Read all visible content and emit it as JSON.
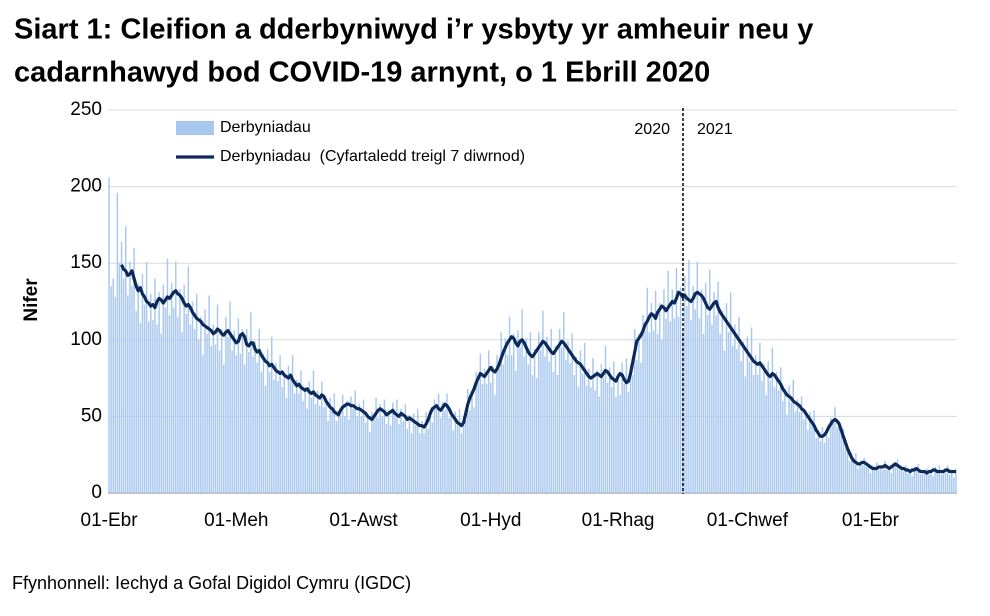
{
  "chart_data": {
    "type": "bar",
    "title": [
      "Siart 1: Cleifion a dderbyniwyd i’r ysbyty yr amheuir neu y",
      "cadarnhawyd bod COVID-19 arnynt, o 1 Ebrill 2020"
    ],
    "ylabel": "Nifer",
    "annotations": [
      "2020",
      "2021"
    ],
    "source": "Ffynhonnell: Iechyd a Gofal Digidol Cymru (IGDC)",
    "ylim": [
      0,
      250
    ],
    "yticks": [
      0,
      50,
      100,
      150,
      200,
      250
    ],
    "grid": true,
    "legend": "top-left",
    "categories": [
      "01-Ebr",
      null,
      null,
      null,
      null,
      null,
      null,
      null,
      null,
      null,
      null,
      null,
      null,
      null,
      null,
      null,
      null,
      null,
      null,
      null,
      null,
      null,
      null,
      null,
      null,
      null,
      null,
      null,
      null,
      null,
      null,
      null,
      null,
      null,
      null,
      null,
      null,
      null,
      null,
      null,
      null,
      null,
      null,
      null,
      null,
      null,
      null,
      null,
      null,
      null,
      null,
      null,
      null,
      null,
      null,
      null,
      null,
      null,
      null,
      null,
      null,
      "01-Meh",
      null,
      null,
      null,
      null,
      null,
      null,
      null,
      null,
      null,
      null,
      null,
      null,
      null,
      null,
      null,
      null,
      null,
      null,
      null,
      null,
      null,
      null,
      null,
      null,
      null,
      null,
      null,
      null,
      null,
      null,
      null,
      null,
      null,
      null,
      null,
      null,
      null,
      null,
      null,
      null,
      null,
      null,
      null,
      null,
      null,
      null,
      null,
      null,
      null,
      null,
      null,
      null,
      null,
      null,
      null,
      null,
      null,
      null,
      null,
      null,
      "01-Awst",
      null,
      null,
      null,
      null,
      null,
      null,
      null,
      null,
      null,
      null,
      null,
      null,
      null,
      null,
      null,
      null,
      null,
      null,
      null,
      null,
      null,
      null,
      null,
      null,
      null,
      null,
      null,
      null,
      null,
      null,
      null,
      null,
      null,
      null,
      null,
      null,
      null,
      null,
      null,
      null,
      null,
      null,
      null,
      null,
      null,
      null,
      null,
      null,
      null,
      null,
      null,
      null,
      null,
      null,
      null,
      null,
      null,
      null,
      null,
      null,
      "01-Hyd",
      null,
      null,
      null,
      null,
      null,
      null,
      null,
      null,
      null,
      null,
      null,
      null,
      null,
      null,
      null,
      null,
      null,
      null,
      null,
      null,
      null,
      null,
      null,
      null,
      null,
      null,
      null,
      null,
      null,
      null,
      null,
      null,
      null,
      null,
      null,
      null,
      null,
      null,
      null,
      null,
      null,
      null,
      null,
      null,
      null,
      null,
      null,
      null,
      null,
      null,
      null,
      null,
      null,
      null,
      null,
      null,
      null,
      null,
      null,
      null,
      "01-Rhag",
      null,
      null,
      null,
      null,
      null,
      null,
      null,
      null,
      null,
      null,
      null,
      null,
      null,
      null,
      null,
      null,
      null,
      null,
      null,
      null,
      null,
      null,
      null,
      null,
      null,
      null,
      null,
      null,
      null,
      null,
      null,
      null,
      null,
      null,
      null,
      null,
      null,
      null,
      null,
      null,
      null,
      null,
      null,
      null,
      null,
      null,
      null,
      null,
      null,
      null,
      null,
      null,
      null,
      null,
      null,
      null,
      null,
      null,
      null,
      null,
      null,
      "01-Chwef",
      null,
      null,
      null,
      null,
      null,
      null,
      null,
      null,
      null,
      null,
      null,
      null,
      null,
      null,
      null,
      null,
      null,
      null,
      null,
      null,
      null,
      null,
      null,
      null,
      null,
      null,
      null,
      null,
      null,
      null,
      null,
      null,
      null,
      null,
      null,
      null,
      null,
      null,
      null,
      null,
      null,
      null,
      null,
      null,
      null,
      null,
      null,
      null,
      null,
      null,
      null,
      null,
      null,
      null,
      null,
      null,
      null,
      null,
      "01-Ebr",
      null,
      null,
      null,
      null,
      null,
      null,
      null,
      null,
      null,
      null,
      null,
      null,
      null,
      null,
      null,
      null,
      null,
      null,
      null,
      null,
      null,
      null,
      null,
      null,
      null,
      null,
      null,
      null,
      null,
      null,
      null,
      null,
      null,
      null,
      null,
      null,
      null,
      null,
      null,
      null,
      null
    ],
    "series": [
      {
        "name": "Derbyniadau",
        "type": "bar",
        "color": "#a8c8ef",
        "values": [
          206,
          135,
          140,
          128,
          196,
          150,
          164,
          140,
          174,
          129,
          151,
          135,
          160,
          119,
          136,
          111,
          143,
          123,
          151,
          112,
          130,
          113,
          140,
          110,
          131,
          104,
          136,
          121,
          153,
          116,
          137,
          121,
          151,
          115,
          133,
          105,
          136,
          117,
          148,
          110,
          125,
          107,
          130,
          100,
          115,
          90,
          120,
          104,
          129,
          96,
          110,
          97,
          123,
          93,
          107,
          84,
          115,
          102,
          125,
          93,
          106,
          90,
          114,
          91,
          107,
          84,
          107,
          92,
          118,
          89,
          99,
          85,
          107,
          79,
          91,
          70,
          94,
          79,
          102,
          74,
          85,
          73,
          90,
          69,
          79,
          62,
          83,
          74,
          90,
          65,
          74,
          65,
          80,
          60,
          69,
          55,
          73,
          62,
          80,
          58,
          67,
          57,
          73,
          56,
          62,
          47,
          62,
          53,
          65,
          47,
          54,
          50,
          64,
          50,
          60,
          48,
          63,
          55,
          67,
          50,
          58,
          50,
          61,
          46,
          52,
          40,
          53,
          48,
          62,
          49,
          58,
          50,
          61,
          45,
          54,
          44,
          59,
          50,
          61,
          45,
          55,
          47,
          58,
          42,
          51,
          39,
          52,
          44,
          55,
          39,
          47,
          39,
          53,
          42,
          54,
          46,
          61,
          55,
          65,
          49,
          59,
          54,
          65,
          49,
          54,
          41,
          53,
          44,
          55,
          39,
          50,
          47,
          68,
          54,
          67,
          56,
          79,
          72,
          91,
          71,
          81,
          71,
          93,
          72,
          83,
          64,
          90,
          81,
          105,
          84,
          101,
          90,
          115,
          90,
          104,
          80,
          106,
          95,
          120,
          89,
          101,
          84,
          105,
          77,
          94,
          75,
          105,
          93,
          119,
          89,
          102,
          86,
          107,
          79,
          96,
          77,
          107,
          95,
          118,
          87,
          99,
          85,
          104,
          77,
          89,
          69,
          93,
          78,
          98,
          70,
          81,
          69,
          88,
          67,
          80,
          63,
          84,
          75,
          96,
          72,
          82,
          69,
          86,
          63,
          78,
          64,
          85,
          71,
          88,
          66,
          84,
          77,
          107,
          87,
          104,
          85,
          116,
          106,
          134,
          105,
          124,
          106,
          132,
          104,
          124,
          100,
          133,
          114,
          145,
          112,
          133,
          114,
          147,
          115,
          134,
          105,
          142,
          122,
          152,
          113,
          135,
          120,
          151,
          114,
          133,
          104,
          137,
          116,
          146,
          110,
          131,
          116,
          138,
          104,
          119,
          93,
          124,
          105,
          131,
          96,
          110,
          94,
          115,
          86,
          99,
          76,
          102,
          86,
          108,
          77,
          90,
          77,
          98,
          73,
          84,
          64,
          86,
          73,
          95,
          69,
          79,
          67,
          82,
          60,
          68,
          51,
          70,
          59,
          74,
          53,
          61,
          53,
          63,
          48,
          54,
          41,
          53,
          44,
          54,
          36,
          41,
          34,
          43,
          33,
          41,
          36,
          49,
          45,
          56,
          43,
          47,
          39,
          42,
          29,
          30,
          21,
          26,
          20,
          26,
          16,
          20,
          18,
          23,
          17,
          19,
          13,
          18,
          15,
          20,
          15,
          18,
          15,
          21,
          15,
          17,
          13,
          20,
          18,
          22,
          15,
          17,
          14,
          18,
          13,
          15,
          11,
          17,
          15,
          19,
          12,
          15,
          12,
          16,
          12,
          15,
          11,
          17,
          13,
          18,
          12,
          15,
          13,
          18,
          12,
          15,
          10,
          16
        ]
      },
      {
        "name": "Derbyniadau  (Cyfartaledd treigl 7 diwrnod)",
        "type": "line",
        "color": "#0b2a5b",
        "values": [
          null,
          null,
          null,
          null,
          null,
          null,
          149,
          146,
          145,
          142,
          143,
          145,
          140,
          135,
          132,
          134,
          130,
          128,
          125,
          124,
          122,
          123,
          121,
          125,
          127,
          126,
          124,
          126,
          128,
          127,
          129,
          131,
          132,
          130,
          129,
          127,
          124,
          122,
          123,
          121,
          118,
          116,
          114,
          113,
          112,
          110,
          109,
          108,
          107,
          106,
          104,
          105,
          107,
          106,
          104,
          103,
          105,
          106,
          104,
          102,
          100,
          98,
          99,
          103,
          104,
          102,
          97,
          96,
          98,
          98,
          94,
          92,
          93,
          90,
          88,
          86,
          85,
          83,
          84,
          82,
          80,
          79,
          78,
          79,
          77,
          76,
          75,
          77,
          74,
          72,
          70,
          71,
          69,
          68,
          67,
          68,
          66,
          65,
          66,
          64,
          63,
          62,
          64,
          63,
          60,
          58,
          56,
          55,
          53,
          52,
          51,
          54,
          56,
          57,
          58,
          58,
          57,
          57,
          56,
          55,
          55,
          54,
          53,
          52,
          50,
          49,
          48,
          50,
          52,
          54,
          55,
          54,
          53,
          51,
          52,
          53,
          54,
          52,
          51,
          50,
          52,
          51,
          50,
          48,
          49,
          48,
          47,
          46,
          45,
          44,
          44,
          43,
          45,
          48,
          52,
          55,
          56,
          57,
          55,
          54,
          56,
          58,
          57,
          55,
          52,
          50,
          48,
          46,
          45,
          44,
          46,
          52,
          58,
          62,
          65,
          68,
          72,
          75,
          78,
          77,
          76,
          78,
          80,
          82,
          80,
          79,
          81,
          84,
          88,
          92,
          95,
          98,
          100,
          102,
          101,
          98,
          96,
          99,
          100,
          98,
          95,
          92,
          90,
          89,
          91,
          93,
          95,
          97,
          99,
          98,
          96,
          94,
          92,
          91,
          93,
          95,
          97,
          99,
          98,
          96,
          94,
          92,
          90,
          88,
          86,
          85,
          84,
          82,
          80,
          78,
          76,
          75,
          76,
          77,
          78,
          77,
          76,
          78,
          80,
          79,
          77,
          75,
          74,
          73,
          76,
          78,
          77,
          74,
          72,
          73,
          78,
          85,
          92,
          99,
          101,
          103,
          106,
          110,
          112,
          115,
          117,
          116,
          114,
          118,
          120,
          122,
          121,
          119,
          121,
          123,
          125,
          124,
          127,
          131,
          130,
          128,
          129,
          127,
          126,
          125,
          127,
          130,
          131,
          130,
          129,
          127,
          124,
          121,
          120,
          122,
          124,
          125,
          121,
          118,
          116,
          114,
          112,
          110,
          108,
          106,
          104,
          102,
          100,
          98,
          96,
          94,
          92,
          90,
          88,
          86,
          85,
          84,
          85,
          83,
          81,
          79,
          77,
          76,
          78,
          77,
          75,
          73,
          71,
          68,
          66,
          64,
          63,
          62,
          60,
          59,
          58,
          57,
          55,
          54,
          52,
          50,
          48,
          46,
          44,
          41,
          39,
          37,
          37,
          38,
          40,
          43,
          45,
          47,
          48,
          47,
          45,
          41,
          37,
          33,
          29,
          26,
          23,
          21,
          20,
          19,
          19,
          20,
          20,
          19,
          18,
          17,
          16,
          16,
          16,
          17,
          17,
          17,
          18,
          17,
          16,
          17,
          18,
          19,
          18,
          17,
          16,
          16,
          15,
          15,
          14,
          15,
          15,
          16,
          15,
          14,
          14,
          14,
          13,
          14,
          14,
          15,
          15,
          14,
          14,
          14,
          14,
          15,
          15,
          14,
          14,
          14,
          14
        ]
      }
    ]
  }
}
